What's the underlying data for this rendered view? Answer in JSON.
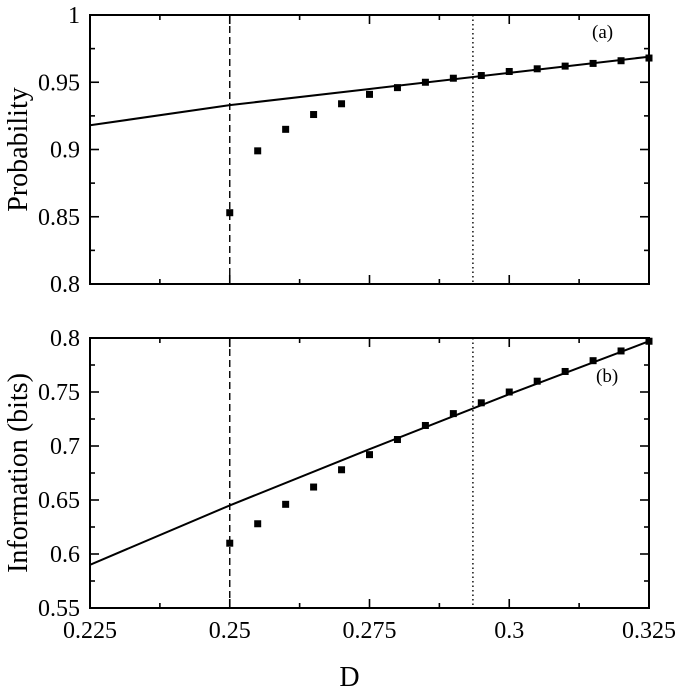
{
  "chart_data": [
    {
      "type": "scatter",
      "panel_label": "(a)",
      "xlabel": "",
      "ylabel": "Probability",
      "xlim": [
        0.225,
        0.325
      ],
      "ylim": [
        0.8,
        1.0
      ],
      "xticks": [
        "0.225",
        "0.25",
        "0.275",
        "0.3",
        "0.325"
      ],
      "yticks": [
        "0.8",
        "0.85",
        "0.9",
        "0.95",
        "1"
      ],
      "x_tick_values": [
        0.225,
        0.25,
        0.275,
        0.3,
        0.325
      ],
      "y_tick_values": [
        0.8,
        0.85,
        0.9,
        0.95,
        1.0
      ],
      "vertical_lines": [
        {
          "x": 0.25,
          "style": "dashed"
        },
        {
          "x": 0.2935,
          "style": "dotted"
        }
      ],
      "series": [
        {
          "type": "line",
          "x": [
            0.225,
            0.25,
            0.275,
            0.3,
            0.325
          ],
          "y": [
            0.918,
            0.933,
            0.945,
            0.957,
            0.969
          ]
        },
        {
          "type": "scatter",
          "marker": "square",
          "x": [
            0.25,
            0.255,
            0.26,
            0.265,
            0.27,
            0.275,
            0.28,
            0.285,
            0.29,
            0.295,
            0.3,
            0.305,
            0.31,
            0.315,
            0.32,
            0.325
          ],
          "y": [
            0.853,
            0.899,
            0.915,
            0.926,
            0.934,
            0.941,
            0.946,
            0.95,
            0.953,
            0.955,
            0.958,
            0.96,
            0.962,
            0.964,
            0.966,
            0.968
          ]
        }
      ]
    },
    {
      "type": "scatter",
      "panel_label": "(b)",
      "xlabel": "D",
      "ylabel": "Information (bits)",
      "xlim": [
        0.225,
        0.325
      ],
      "ylim": [
        0.55,
        0.8
      ],
      "xticks": [
        "0.225",
        "0.25",
        "0.275",
        "0.3",
        "0.325"
      ],
      "yticks": [
        "0.55",
        "0.6",
        "0.65",
        "0.7",
        "0.75",
        "0.8"
      ],
      "x_tick_values": [
        0.225,
        0.25,
        0.275,
        0.3,
        0.325
      ],
      "y_tick_values": [
        0.55,
        0.6,
        0.65,
        0.7,
        0.75,
        0.8
      ],
      "vertical_lines": [
        {
          "x": 0.25,
          "style": "dashed"
        },
        {
          "x": 0.2935,
          "style": "dotted"
        }
      ],
      "series": [
        {
          "type": "line",
          "x": [
            0.225,
            0.25,
            0.275,
            0.3,
            0.325
          ],
          "y": [
            0.59,
            0.645,
            0.697,
            0.748,
            0.797
          ]
        },
        {
          "type": "scatter",
          "marker": "square",
          "x": [
            0.25,
            0.255,
            0.26,
            0.265,
            0.27,
            0.275,
            0.28,
            0.285,
            0.29,
            0.295,
            0.3,
            0.305,
            0.31,
            0.315,
            0.32,
            0.325
          ],
          "y": [
            0.61,
            0.628,
            0.646,
            0.662,
            0.678,
            0.692,
            0.706,
            0.719,
            0.73,
            0.74,
            0.75,
            0.76,
            0.769,
            0.779,
            0.788,
            0.797
          ]
        }
      ]
    }
  ]
}
